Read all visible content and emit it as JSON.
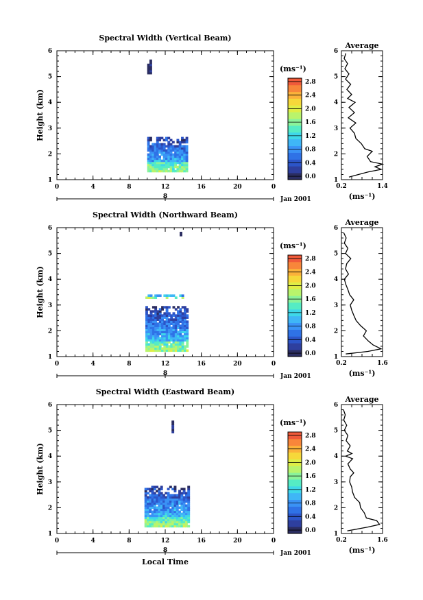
{
  "chart_data": [
    {
      "type": "heatmap",
      "title": "Spectral Width (Vertical Beam)",
      "ylabel": "Height (km)",
      "xlabel": "",
      "x_ticks": [
        "0",
        "4",
        "8",
        "12",
        "16",
        "20",
        "0"
      ],
      "y_ticks": [
        "1",
        "2",
        "3",
        "4",
        "5",
        "6"
      ],
      "xlim": [
        0,
        24
      ],
      "ylim": [
        1,
        6
      ],
      "date_day": "8",
      "date_label": "Jan 2001",
      "colorbar": {
        "unit": "(ms⁻¹)",
        "ticks": [
          "0.0",
          "0.4",
          "0.8",
          "1.2",
          "1.6",
          "2.0",
          "2.4",
          "2.8"
        ],
        "range": [
          0,
          3.0
        ]
      },
      "data_regions": [
        {
          "time": [
            10.0,
            14.5
          ],
          "height": [
            1.3,
            2.6
          ],
          "mean": 0.75
        },
        {
          "time": [
            10.0,
            10.3
          ],
          "height": [
            5.1,
            5.7
          ],
          "mean": 0.1
        }
      ],
      "average": {
        "title": "Average",
        "xlabel": "(ms⁻¹)",
        "x_ticks": [
          "0.2",
          "1.4"
        ],
        "xlim": [
          0.2,
          1.4
        ],
        "profile": [
          {
            "h": 1.1,
            "v": 0.42
          },
          {
            "h": 1.3,
            "v": 0.98
          },
          {
            "h": 1.4,
            "v": 1.36
          },
          {
            "h": 1.5,
            "v": 1.18
          },
          {
            "h": 1.6,
            "v": 1.4
          },
          {
            "h": 1.7,
            "v": 1.05
          },
          {
            "h": 1.9,
            "v": 0.95
          },
          {
            "h": 2.1,
            "v": 1.1
          },
          {
            "h": 2.2,
            "v": 0.88
          },
          {
            "h": 2.4,
            "v": 0.78
          },
          {
            "h": 2.6,
            "v": 0.62
          },
          {
            "h": 2.8,
            "v": 0.58
          },
          {
            "h": 3.0,
            "v": 0.45
          },
          {
            "h": 3.2,
            "v": 0.62
          },
          {
            "h": 3.4,
            "v": 0.4
          },
          {
            "h": 3.6,
            "v": 0.58
          },
          {
            "h": 3.8,
            "v": 0.42
          },
          {
            "h": 4.0,
            "v": 0.6
          },
          {
            "h": 4.15,
            "v": 0.38
          },
          {
            "h": 4.3,
            "v": 0.5
          },
          {
            "h": 4.5,
            "v": 0.36
          },
          {
            "h": 4.7,
            "v": 0.47
          },
          {
            "h": 4.9,
            "v": 0.32
          },
          {
            "h": 5.1,
            "v": 0.42
          },
          {
            "h": 5.3,
            "v": 0.3
          },
          {
            "h": 5.5,
            "v": 0.38
          },
          {
            "h": 5.7,
            "v": 0.28
          },
          {
            "h": 5.9,
            "v": 0.33
          }
        ]
      }
    },
    {
      "type": "heatmap",
      "title": "Spectral Width (Northward Beam)",
      "ylabel": "Height (km)",
      "xlabel": "",
      "x_ticks": [
        "0",
        "4",
        "8",
        "12",
        "16",
        "20",
        "0"
      ],
      "y_ticks": [
        "1",
        "2",
        "3",
        "4",
        "5",
        "6"
      ],
      "xlim": [
        0,
        24
      ],
      "ylim": [
        1,
        6
      ],
      "date_day": "8",
      "date_label": "Jan 2001",
      "colorbar": {
        "unit": "(ms⁻¹)",
        "ticks": [
          "0.0",
          "0.4",
          "0.8",
          "1.2",
          "1.6",
          "2.0",
          "2.4",
          "2.8"
        ],
        "range": [
          0,
          3.0
        ]
      },
      "data_regions": [
        {
          "time": [
            9.8,
            14.5
          ],
          "height": [
            1.2,
            2.9
          ],
          "mean": 0.8
        },
        {
          "time": [
            9.8,
            14.5
          ],
          "height": [
            3.25,
            3.38
          ],
          "mean": 0.3
        },
        {
          "time": [
            13.6,
            13.8
          ],
          "height": [
            5.6,
            5.8
          ],
          "mean": 0.1
        }
      ],
      "average": {
        "title": "Average",
        "xlabel": "(ms⁻¹)",
        "x_ticks": [
          "0.2",
          "1.6"
        ],
        "xlim": [
          0.2,
          1.6
        ],
        "profile": [
          {
            "h": 1.1,
            "v": 0.35
          },
          {
            "h": 1.2,
            "v": 1.1
          },
          {
            "h": 1.3,
            "v": 1.55
          },
          {
            "h": 1.45,
            "v": 1.28
          },
          {
            "h": 1.6,
            "v": 1.12
          },
          {
            "h": 1.8,
            "v": 0.95
          },
          {
            "h": 2.0,
            "v": 1.05
          },
          {
            "h": 2.2,
            "v": 0.85
          },
          {
            "h": 2.4,
            "v": 0.7
          },
          {
            "h": 2.6,
            "v": 0.62
          },
          {
            "h": 2.8,
            "v": 0.55
          },
          {
            "h": 3.0,
            "v": 0.5
          },
          {
            "h": 3.2,
            "v": 0.62
          },
          {
            "h": 3.4,
            "v": 0.48
          },
          {
            "h": 3.6,
            "v": 0.42
          },
          {
            "h": 3.8,
            "v": 0.35
          },
          {
            "h": 4.0,
            "v": 0.3
          },
          {
            "h": 4.2,
            "v": 0.44
          },
          {
            "h": 4.4,
            "v": 0.34
          },
          {
            "h": 4.6,
            "v": 0.38
          },
          {
            "h": 4.8,
            "v": 0.52
          },
          {
            "h": 5.0,
            "v": 0.34
          },
          {
            "h": 5.2,
            "v": 0.42
          },
          {
            "h": 5.4,
            "v": 0.3
          },
          {
            "h": 5.6,
            "v": 0.36
          },
          {
            "h": 5.8,
            "v": 0.28
          }
        ]
      }
    },
    {
      "type": "heatmap",
      "title": "Spectral Width (Eastward Beam)",
      "ylabel": "Height (km)",
      "xlabel": "Local Time",
      "x_ticks": [
        "0",
        "4",
        "8",
        "12",
        "16",
        "20",
        "0"
      ],
      "y_ticks": [
        "1",
        "2",
        "3",
        "4",
        "5",
        "6"
      ],
      "xlim": [
        0,
        24
      ],
      "ylim": [
        1,
        6
      ],
      "date_day": "8",
      "date_label": "Jan 2001",
      "colorbar": {
        "unit": "(ms⁻¹)",
        "ticks": [
          "0.0",
          "0.4",
          "0.8",
          "1.2",
          "1.6",
          "2.0",
          "2.4",
          "2.8"
        ],
        "range": [
          0,
          3.0
        ]
      },
      "data_regions": [
        {
          "time": [
            9.7,
            14.5
          ],
          "height": [
            1.25,
            2.8
          ],
          "mean": 0.8
        },
        {
          "time": [
            12.7,
            12.9
          ],
          "height": [
            4.9,
            5.5
          ],
          "mean": 0.1
        }
      ],
      "average": {
        "title": "Average",
        "xlabel": "(ms⁻¹)",
        "x_ticks": [
          "0.2",
          "1.6"
        ],
        "xlim": [
          0.2,
          1.6
        ],
        "profile": [
          {
            "h": 1.1,
            "v": 0.4
          },
          {
            "h": 1.25,
            "v": 1.1
          },
          {
            "h": 1.35,
            "v": 1.5
          },
          {
            "h": 1.5,
            "v": 1.4
          },
          {
            "h": 1.6,
            "v": 1.05
          },
          {
            "h": 1.8,
            "v": 0.98
          },
          {
            "h": 2.0,
            "v": 0.85
          },
          {
            "h": 2.2,
            "v": 0.82
          },
          {
            "h": 2.4,
            "v": 0.65
          },
          {
            "h": 2.6,
            "v": 0.58
          },
          {
            "h": 2.8,
            "v": 0.55
          },
          {
            "h": 3.0,
            "v": 0.48
          },
          {
            "h": 3.2,
            "v": 0.5
          },
          {
            "h": 3.35,
            "v": 0.62
          },
          {
            "h": 3.5,
            "v": 0.5
          },
          {
            "h": 3.7,
            "v": 0.42
          },
          {
            "h": 3.9,
            "v": 0.58
          },
          {
            "h": 4.0,
            "v": 0.35
          },
          {
            "h": 4.1,
            "v": 0.56
          },
          {
            "h": 4.2,
            "v": 0.4
          },
          {
            "h": 4.4,
            "v": 0.5
          },
          {
            "h": 4.6,
            "v": 0.36
          },
          {
            "h": 4.8,
            "v": 0.42
          },
          {
            "h": 5.0,
            "v": 0.3
          },
          {
            "h": 5.2,
            "v": 0.38
          },
          {
            "h": 5.4,
            "v": 0.28
          },
          {
            "h": 5.6,
            "v": 0.33
          },
          {
            "h": 5.8,
            "v": 0.27
          }
        ]
      }
    }
  ]
}
